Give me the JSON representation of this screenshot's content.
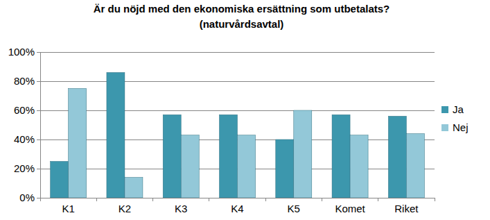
{
  "chart_data": {
    "type": "bar",
    "title": "Är du nöjd med den ekonomiska ersättning som utbetalats?",
    "subtitle": "(naturvårdsavtal)",
    "categories": [
      "K1",
      "K2",
      "K3",
      "K4",
      "K5",
      "Komet",
      "Riket"
    ],
    "series": [
      {
        "name": "Ja",
        "color": "#3c97ad",
        "values": [
          25,
          86,
          57,
          57,
          40,
          57,
          56
        ]
      },
      {
        "name": "Nej",
        "color": "#93c8d8",
        "values": [
          75,
          14,
          43,
          43,
          60,
          43,
          44
        ]
      }
    ],
    "ylim": [
      0,
      100
    ],
    "yticks": [
      {
        "value": 0,
        "label": "0%"
      },
      {
        "value": 20,
        "label": "20%"
      },
      {
        "value": 40,
        "label": "40%"
      },
      {
        "value": 60,
        "label": "60%"
      },
      {
        "value": 80,
        "label": "80%"
      },
      {
        "value": 100,
        "label": "100%"
      }
    ],
    "grid": true,
    "legend": "right"
  }
}
